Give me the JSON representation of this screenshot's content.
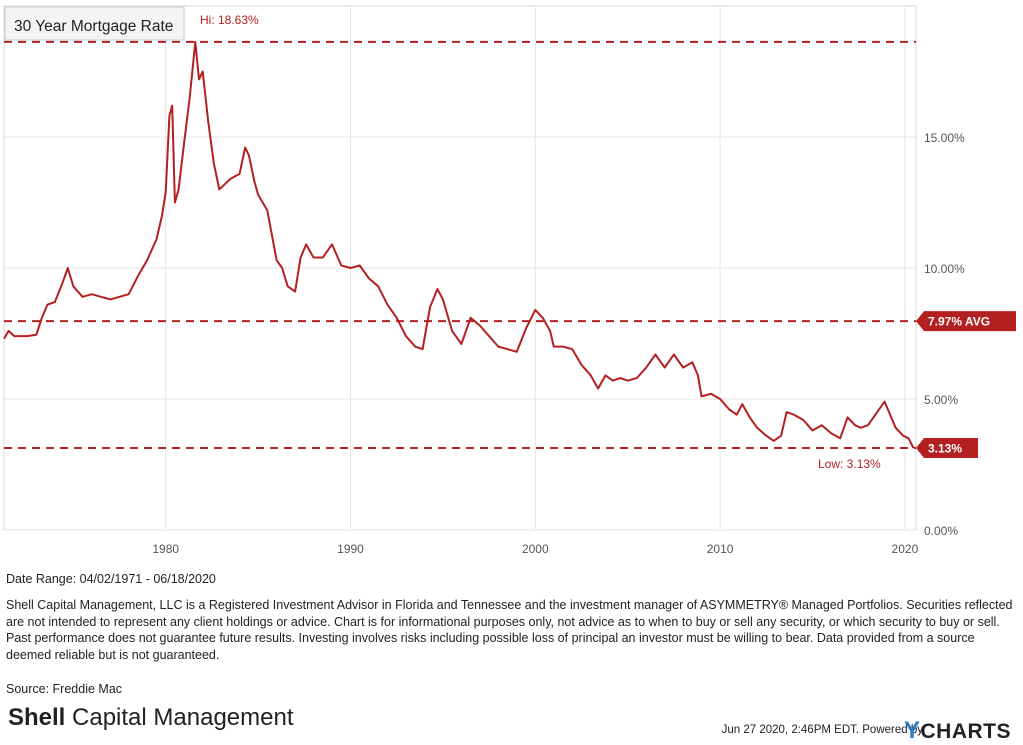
{
  "chart_data": {
    "type": "line",
    "title": "30 Year Mortgage Rate",
    "xlabel": "",
    "ylabel": "",
    "xlim": [
      1971.25,
      2020.6
    ],
    "ylim": [
      0,
      20
    ],
    "x_ticks": [
      1980,
      1990,
      2000,
      2010,
      2020
    ],
    "x_tick_labels": [
      "1980",
      "1990",
      "2000",
      "2010",
      "2020"
    ],
    "y_ticks": [
      0,
      5,
      10,
      15
    ],
    "y_tick_labels": [
      "0.00%",
      "5.00%",
      "10.00%",
      "15.00%"
    ],
    "grid": true,
    "series": [
      {
        "name": "30 Year Mortgage Rate",
        "x": [
          1971.25,
          1971.5,
          1971.8,
          1972.0,
          1972.5,
          1973.0,
          1973.3,
          1973.6,
          1974.0,
          1974.4,
          1974.7,
          1975.0,
          1975.5,
          1976.0,
          1976.5,
          1977.0,
          1977.5,
          1978.0,
          1978.5,
          1979.0,
          1979.5,
          1979.8,
          1980.0,
          1980.2,
          1980.35,
          1980.5,
          1980.7,
          1981.0,
          1981.3,
          1981.6,
          1981.8,
          1982.0,
          1982.3,
          1982.6,
          1982.9,
          1983.2,
          1983.5,
          1984.0,
          1984.3,
          1984.5,
          1984.8,
          1985.0,
          1985.5,
          1986.0,
          1986.3,
          1986.6,
          1987.0,
          1987.3,
          1987.6,
          1988.0,
          1988.5,
          1989.0,
          1989.5,
          1990.0,
          1990.5,
          1991.0,
          1991.5,
          1992.0,
          1992.5,
          1993.0,
          1993.5,
          1993.9,
          1994.3,
          1994.7,
          1995.0,
          1995.5,
          1996.0,
          1996.5,
          1997.0,
          1997.5,
          1998.0,
          1998.5,
          1999.0,
          1999.5,
          2000.0,
          2000.4,
          2000.8,
          2001.0,
          2001.5,
          2002.0,
          2002.5,
          2003.0,
          2003.4,
          2003.8,
          2004.2,
          2004.6,
          2005.0,
          2005.5,
          2006.0,
          2006.5,
          2007.0,
          2007.5,
          2008.0,
          2008.5,
          2008.8,
          2009.0,
          2009.5,
          2010.0,
          2010.5,
          2010.9,
          2011.2,
          2011.6,
          2012.0,
          2012.5,
          2012.9,
          2013.3,
          2013.6,
          2014.0,
          2014.5,
          2015.0,
          2015.5,
          2016.0,
          2016.5,
          2016.9,
          2017.3,
          2017.6,
          2018.0,
          2018.5,
          2018.9,
          2019.2,
          2019.5,
          2019.9,
          2020.2,
          2020.46
        ],
        "values": [
          7.3,
          7.6,
          7.4,
          7.4,
          7.4,
          7.45,
          8.1,
          8.6,
          8.7,
          9.4,
          10.0,
          9.3,
          8.9,
          9.0,
          8.9,
          8.8,
          8.9,
          9.0,
          9.7,
          10.3,
          11.1,
          12.0,
          12.9,
          15.8,
          16.2,
          12.5,
          13.0,
          14.8,
          16.5,
          18.63,
          17.2,
          17.5,
          15.6,
          14.0,
          13.0,
          13.2,
          13.4,
          13.6,
          14.6,
          14.3,
          13.3,
          12.8,
          12.2,
          10.3,
          10.0,
          9.3,
          9.1,
          10.4,
          10.9,
          10.4,
          10.4,
          10.9,
          10.1,
          10.0,
          10.1,
          9.6,
          9.3,
          8.6,
          8.1,
          7.4,
          7.0,
          6.9,
          8.5,
          9.2,
          8.8,
          7.6,
          7.1,
          8.1,
          7.8,
          7.4,
          7.0,
          6.9,
          6.8,
          7.7,
          8.4,
          8.1,
          7.6,
          7.0,
          7.0,
          6.9,
          6.3,
          5.9,
          5.4,
          5.9,
          5.7,
          5.8,
          5.7,
          5.8,
          6.2,
          6.7,
          6.2,
          6.7,
          6.2,
          6.4,
          5.9,
          5.1,
          5.2,
          5.0,
          4.6,
          4.4,
          4.8,
          4.3,
          3.9,
          3.6,
          3.4,
          3.6,
          4.5,
          4.4,
          4.2,
          3.8,
          4.0,
          3.7,
          3.5,
          4.3,
          4.0,
          3.9,
          4.0,
          4.5,
          4.9,
          4.4,
          3.9,
          3.6,
          3.5,
          3.13
        ]
      }
    ],
    "reference_lines": [
      {
        "name": "High",
        "value": 18.63,
        "label": "Hi: 18.63%"
      },
      {
        "name": "Average",
        "value": 7.97,
        "label": "7.97% AVG"
      },
      {
        "name": "Low",
        "value": 3.13,
        "label": "Low: 3.13%",
        "tag": "3.13%"
      }
    ]
  },
  "footer": {
    "date_range": "Date Range: 04/02/1971 - 06/18/2020",
    "disclaimer": "Shell Capital Management, LLC is a Registered Investment Advisor in Florida and Tennessee and the investment manager of ASYMMETRY® Managed Portfolios. Securities reflected are not intended to represent any client holdings or advice. Chart is for informational purposes only, not advice as to when to buy or sell any security, or which security to buy or sell. Past performance does not guarantee future results. Investing involves risks including possible loss of principal an investor must be willing to bear. Data provided from a source deemed reliable but is not guaranteed.",
    "source": "Source: Freddie Mac",
    "brand_bold": "Shell",
    "brand_rest": " Capital Management",
    "timestamp": "Jun 27 2020, 2:46PM EDT.  Powered by ",
    "powered_y": "Y",
    "powered_rest": "CHARTS"
  }
}
